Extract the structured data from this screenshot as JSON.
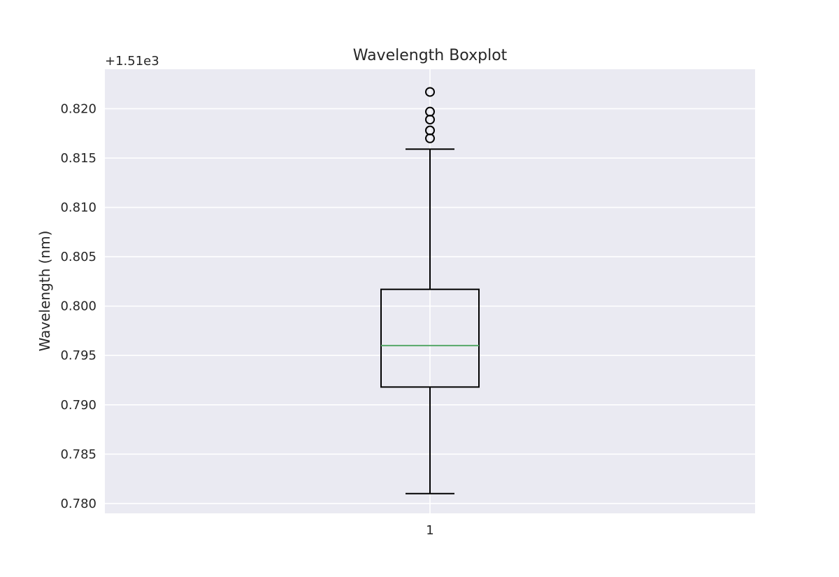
{
  "chart_data": {
    "type": "box",
    "title": "Wavelength Boxplot",
    "xlabel": "",
    "ylabel": "Wavelength (nm)",
    "offset_text": "+1.51e3",
    "categories": [
      "1"
    ],
    "ylim": [
      0.779,
      0.824
    ],
    "yticks": [
      0.78,
      0.785,
      0.79,
      0.795,
      0.8,
      0.805,
      0.81,
      0.815,
      0.82
    ],
    "ytick_labels": [
      "0.780",
      "0.785",
      "0.790",
      "0.795",
      "0.800",
      "0.805",
      "0.810",
      "0.815",
      "0.820"
    ],
    "boxes": [
      {
        "category": "1",
        "whisker_low": 0.781,
        "q1": 0.7918,
        "median": 0.796,
        "q3": 0.8017,
        "whisker_high": 0.8159,
        "outliers": [
          0.817,
          0.8178,
          0.8189,
          0.8197,
          0.8217
        ]
      }
    ],
    "grid": true,
    "colors": {
      "plot_background": "#eaeaf2",
      "grid": "#ffffff",
      "box": "#000000",
      "median": "#55a868"
    }
  }
}
